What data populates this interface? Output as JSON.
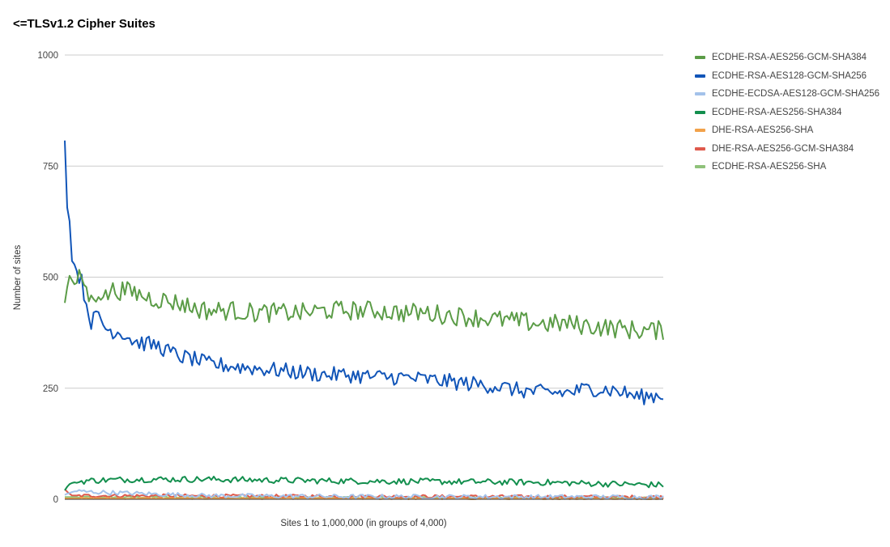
{
  "title": "<=TLSv1.2 Cipher Suites",
  "chart_data": {
    "type": "line",
    "title": "<=TLSv1.2 Cipher Suites",
    "xlabel": "Sites 1 to 1,000,000 (in groups of 4,000)",
    "ylabel": "Number of sites",
    "ylim": [
      0,
      1000
    ],
    "yticks": [
      0,
      250,
      500,
      750,
      1000
    ],
    "xlim": [
      1,
      250
    ],
    "grid": true,
    "legend_position": "right",
    "series_x_note": "x = group index 1..250",
    "series": [
      {
        "name": "ECDHE-RSA-AES256-GCM-SHA384",
        "color": "#5b9c47",
        "anchors": [
          [
            1,
            445
          ],
          [
            3,
            505
          ],
          [
            5,
            480
          ],
          [
            8,
            505
          ],
          [
            10,
            470
          ],
          [
            12,
            445
          ],
          [
            15,
            470
          ],
          [
            18,
            455
          ],
          [
            20,
            470
          ],
          [
            25,
            470
          ],
          [
            30,
            465
          ],
          [
            35,
            455
          ],
          [
            40,
            450
          ],
          [
            45,
            445
          ],
          [
            50,
            440
          ],
          [
            55,
            430
          ],
          [
            60,
            425
          ],
          [
            70,
            425
          ],
          [
            80,
            420
          ],
          [
            90,
            420
          ],
          [
            100,
            420
          ],
          [
            110,
            425
          ],
          [
            120,
            425
          ],
          [
            130,
            425
          ],
          [
            140,
            420
          ],
          [
            150,
            420
          ],
          [
            160,
            415
          ],
          [
            170,
            410
          ],
          [
            180,
            405
          ],
          [
            190,
            400
          ],
          [
            200,
            395
          ],
          [
            210,
            395
          ],
          [
            220,
            390
          ],
          [
            230,
            385
          ],
          [
            240,
            380
          ],
          [
            250,
            380
          ]
        ],
        "noise": 22
      },
      {
        "name": "ECDHE-RSA-AES128-GCM-SHA256",
        "color": "#1155b8",
        "anchors": [
          [
            1,
            810
          ],
          [
            2,
            660
          ],
          [
            3,
            625
          ],
          [
            4,
            540
          ],
          [
            6,
            515
          ],
          [
            8,
            490
          ],
          [
            10,
            440
          ],
          [
            12,
            400
          ],
          [
            15,
            415
          ],
          [
            18,
            385
          ],
          [
            20,
            380
          ],
          [
            25,
            375
          ],
          [
            30,
            355
          ],
          [
            35,
            350
          ],
          [
            40,
            345
          ],
          [
            45,
            330
          ],
          [
            50,
            320
          ],
          [
            55,
            315
          ],
          [
            60,
            305
          ],
          [
            70,
            300
          ],
          [
            80,
            295
          ],
          [
            90,
            290
          ],
          [
            100,
            285
          ],
          [
            110,
            280
          ],
          [
            120,
            280
          ],
          [
            130,
            275
          ],
          [
            140,
            275
          ],
          [
            150,
            270
          ],
          [
            160,
            265
          ],
          [
            170,
            260
          ],
          [
            180,
            255
          ],
          [
            190,
            245
          ],
          [
            200,
            240
          ],
          [
            210,
            240
          ],
          [
            220,
            250
          ],
          [
            230,
            245
          ],
          [
            240,
            230
          ],
          [
            250,
            235
          ]
        ],
        "noise": 18
      },
      {
        "name": "ECDHE-ECDSA-AES128-GCM-SHA256",
        "color": "#a3c2ea",
        "anchors": [
          [
            1,
            10
          ],
          [
            5,
            18
          ],
          [
            20,
            15
          ],
          [
            60,
            8
          ],
          [
            120,
            6
          ],
          [
            250,
            5
          ]
        ],
        "noise": 5
      },
      {
        "name": "ECDHE-RSA-AES256-SHA384",
        "color": "#138f4e",
        "anchors": [
          [
            1,
            20
          ],
          [
            3,
            35
          ],
          [
            10,
            42
          ],
          [
            30,
            45
          ],
          [
            60,
            45
          ],
          [
            100,
            42
          ],
          [
            150,
            40
          ],
          [
            200,
            38
          ],
          [
            250,
            32
          ]
        ],
        "noise": 7
      },
      {
        "name": "DHE-RSA-AES256-SHA",
        "color": "#f2a24a",
        "anchors": [
          [
            1,
            2
          ],
          [
            250,
            1
          ]
        ],
        "noise": 1.5
      },
      {
        "name": "DHE-RSA-AES256-GCM-SHA384",
        "color": "#df5a4c",
        "anchors": [
          [
            1,
            22
          ],
          [
            4,
            8
          ],
          [
            20,
            8
          ],
          [
            80,
            7
          ],
          [
            160,
            6
          ],
          [
            250,
            5
          ]
        ],
        "noise": 4
      },
      {
        "name": "ECDHE-RSA-AES256-SHA",
        "color": "#8fc27a",
        "anchors": [
          [
            1,
            5
          ],
          [
            250,
            3
          ]
        ],
        "noise": 2
      }
    ]
  }
}
